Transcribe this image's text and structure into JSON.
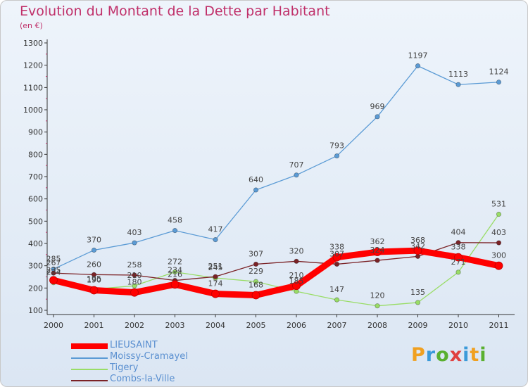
{
  "title": "Evolution du Montant de la Dette par Habitant",
  "subtitle": "(en €)",
  "logo_text": "Proxiti",
  "chart_data": {
    "type": "line",
    "title": "Evolution du Montant de la Dette par Habitant",
    "subtitle": "(en €)",
    "xlabel": "",
    "ylabel": "",
    "x": [
      "2000",
      "2001",
      "2002",
      "2003",
      "2004",
      "2005",
      "2006",
      "2007",
      "2008",
      "2009",
      "2010",
      "2011"
    ],
    "ylim": [
      100,
      1300
    ],
    "yticks": [
      100,
      200,
      300,
      400,
      500,
      600,
      700,
      800,
      900,
      1000,
      1100,
      1200,
      1300
    ],
    "grid": false,
    "legend_position": "bottom-left",
    "series": [
      {
        "name": "LIEUSAINT",
        "color": "#ff0000",
        "values": [
          235,
          190,
          180,
          216,
          174,
          168,
          210,
          338,
          362,
          368,
          338,
          300
        ]
      },
      {
        "name": "Moissy-Cramayel",
        "color": "#5b9bd5",
        "values": [
          285,
          370,
          403,
          458,
          417,
          640,
          707,
          793,
          969,
          1197,
          1113,
          1124
        ]
      },
      {
        "name": "Tigery",
        "color": "#99dd66",
        "values": [
          224,
          195,
          210,
          272,
          245,
          229,
          185,
          147,
          120,
          135,
          271,
          531
        ]
      },
      {
        "name": "Combs-la-Ville",
        "color": "#7b2226",
        "values": [
          267,
          260,
          258,
          234,
          251,
          307,
          320,
          307,
          324,
          342,
          404,
          403
        ]
      }
    ]
  }
}
